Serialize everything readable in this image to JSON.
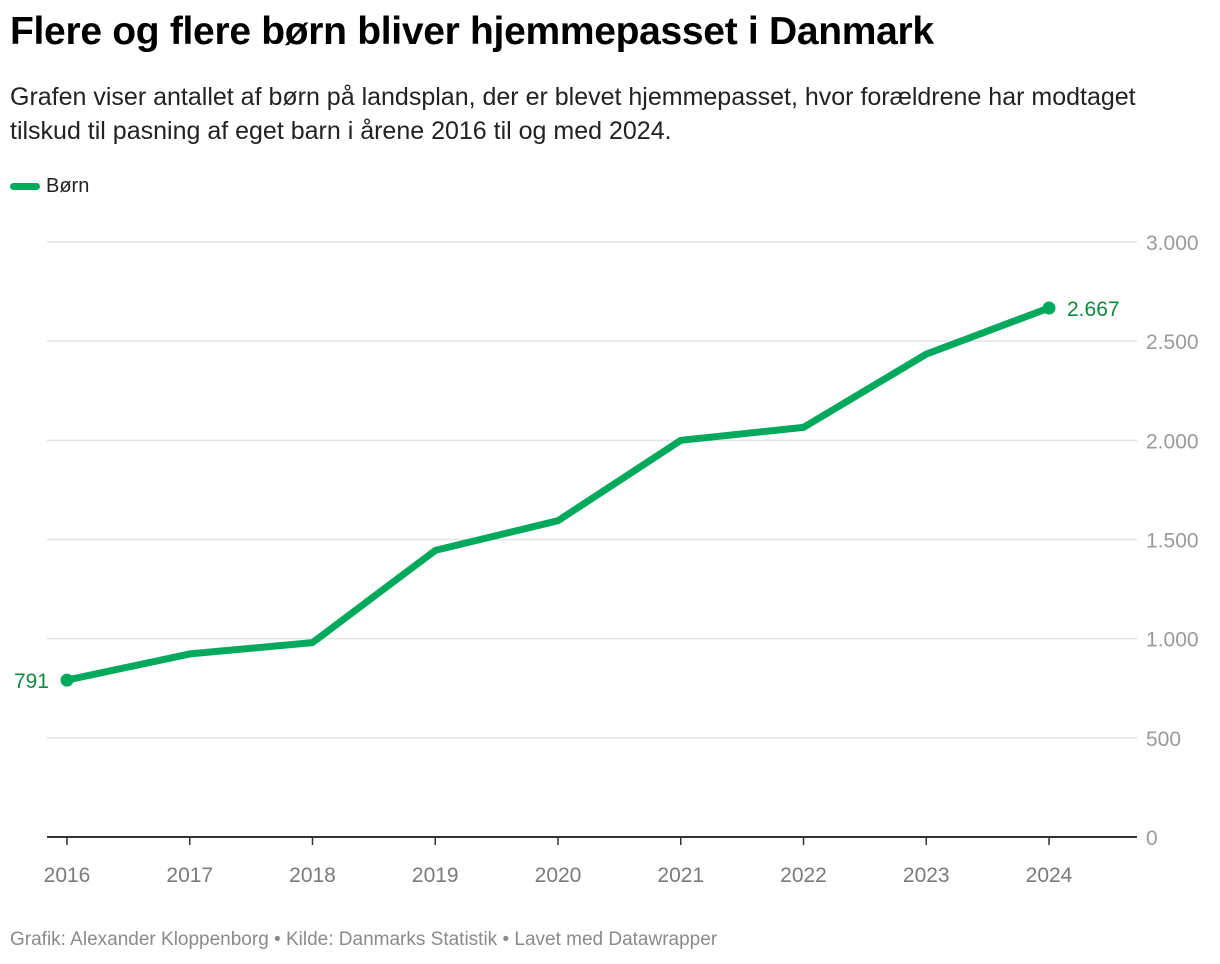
{
  "title": "Flere og flere børn bliver hjemmepasset i Danmark",
  "subtitle": "Grafen viser antallet af børn på landsplan, der er blevet hjemmepasset, hvor forældrene har modtaget tilskud til pasning af eget barn i årene 2016 til og med 2024.",
  "footer": "Grafik: Alexander Kloppenborg • Kilde: Danmarks Statistik • Lavet med Datawrapper",
  "colors": {
    "series": "#00a95c",
    "label": "#0e8a3f",
    "grid": "#e2e2e2",
    "axis": "#333333"
  },
  "chart_data": {
    "type": "line",
    "title": "Flere og flere børn bliver hjemmepasset i Danmark",
    "xlabel": "",
    "ylabel": "",
    "x": [
      "2016",
      "2017",
      "2018",
      "2019",
      "2020",
      "2021",
      "2022",
      "2023",
      "2024"
    ],
    "series": [
      {
        "name": "Børn",
        "values": [
          791,
          923,
          980,
          1445,
          1595,
          2000,
          2065,
          2435,
          2667
        ]
      }
    ],
    "ylim": [
      0,
      3000
    ],
    "yticks": [
      0,
      500,
      1000,
      1500,
      2000,
      2500,
      3000
    ],
    "ytick_labels": [
      "0",
      "500",
      "1.000",
      "1.500",
      "2.000",
      "2.500",
      "3.000"
    ],
    "grid": true,
    "legend": "top-left",
    "data_labels": [
      {
        "index": 0,
        "text": "791"
      },
      {
        "index": 8,
        "text": "2.667"
      }
    ]
  }
}
